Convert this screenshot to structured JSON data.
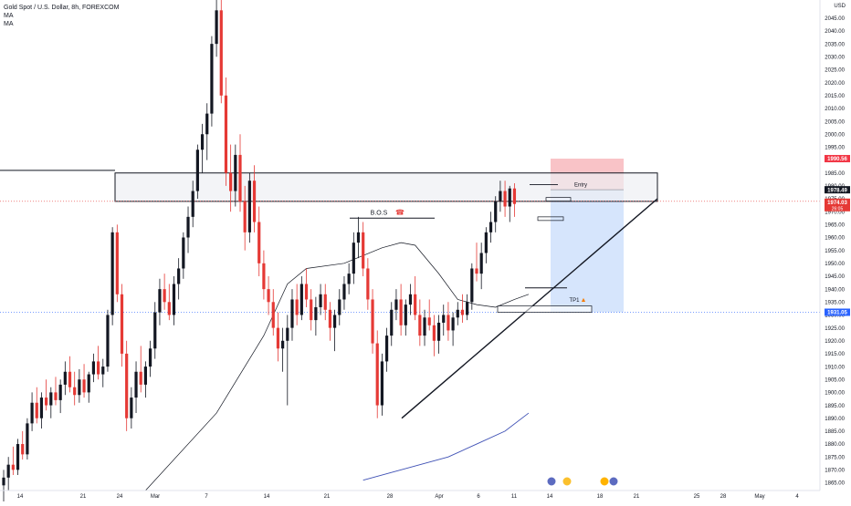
{
  "legend": {
    "symbol": "Gold Spot / U.S. Dollar, 8h, FOREXCOM",
    "ma1": "MA",
    "ma2": "MA"
  },
  "axis": {
    "currency": "USD"
  },
  "colors": {
    "up": "#131722",
    "down": "#e53935",
    "ma_short": "#131722",
    "ma_long": "#3f51b5",
    "sl_zone": "#f8b8bd",
    "tp_zone": "#cfe0fb",
    "current_price_bg": "#e53935",
    "tp_price_bg": "#2962ff",
    "entry_price_bg": "#131722",
    "sl_price_bg": "#f23645"
  },
  "chart_data": {
    "type": "candlestick",
    "title": "Gold Spot / U.S. Dollar, 8h, FOREXCOM",
    "ylim": [
      1862,
      2052
    ],
    "y_ticks": [
      1865,
      1870,
      1875,
      1880,
      1885,
      1890,
      1895,
      1900,
      1905,
      1910,
      1915,
      1920,
      1925,
      1930,
      1935,
      1940,
      1945,
      1950,
      1955,
      1960,
      1965,
      1970,
      1975,
      1980,
      1985,
      1990,
      1995,
      2000,
      2005,
      2010,
      2015,
      2020,
      2025,
      2030,
      2035,
      2040,
      2045
    ],
    "x_ticks": [
      "14",
      "21",
      "24",
      "Mar",
      "7",
      "14",
      "21",
      "28",
      "Apr",
      "6",
      "11",
      "14",
      "18",
      "21",
      "25",
      "28",
      "May",
      "4"
    ],
    "annotations": {
      "entry_label": "Entry",
      "tp_label": "TP1",
      "bos_label": "B.O.S"
    },
    "price_labels": {
      "sl": "1990.56",
      "entry": "1978.49",
      "current": "1974.03",
      "countdown": "26:05",
      "tp": "1931.05"
    },
    "levels": {
      "sl": 1990.56,
      "entry": 1978.49,
      "current": 1974.03,
      "tp": 1931.05,
      "resistance_top": 1985,
      "resistance_bottom": 1974,
      "bos": 1967.5
    },
    "candles": [
      [
        1864,
        1870,
        1856,
        1867
      ],
      [
        1867,
        1875,
        1862,
        1872
      ],
      [
        1872,
        1879,
        1868,
        1870
      ],
      [
        1870,
        1882,
        1868,
        1880
      ],
      [
        1880,
        1885,
        1874,
        1876
      ],
      [
        1876,
        1890,
        1874,
        1888
      ],
      [
        1888,
        1900,
        1885,
        1896
      ],
      [
        1896,
        1902,
        1888,
        1890
      ],
      [
        1890,
        1900,
        1886,
        1898
      ],
      [
        1898,
        1905,
        1893,
        1895
      ],
      [
        1895,
        1902,
        1890,
        1900
      ],
      [
        1900,
        1906,
        1895,
        1897
      ],
      [
        1897,
        1905,
        1892,
        1903
      ],
      [
        1903,
        1912,
        1899,
        1908
      ],
      [
        1908,
        1914,
        1900,
        1902
      ],
      [
        1902,
        1908,
        1895,
        1899
      ],
      [
        1899,
        1909,
        1896,
        1905
      ],
      [
        1905,
        1911,
        1898,
        1900
      ],
      [
        1900,
        1908,
        1896,
        1907
      ],
      [
        1907,
        1915,
        1904,
        1912
      ],
      [
        1912,
        1918,
        1905,
        1907
      ],
      [
        1907,
        1913,
        1902,
        1910
      ],
      [
        1910,
        1932,
        1908,
        1930
      ],
      [
        1930,
        1964,
        1926,
        1962
      ],
      [
        1962,
        1965,
        1935,
        1938
      ],
      [
        1938,
        1942,
        1910,
        1915
      ],
      [
        1915,
        1920,
        1885,
        1890
      ],
      [
        1890,
        1902,
        1886,
        1898
      ],
      [
        1898,
        1912,
        1892,
        1908
      ],
      [
        1908,
        1918,
        1900,
        1903
      ],
      [
        1903,
        1912,
        1898,
        1910
      ],
      [
        1910,
        1920,
        1906,
        1917
      ],
      [
        1917,
        1935,
        1913,
        1931
      ],
      [
        1931,
        1944,
        1926,
        1940
      ],
      [
        1940,
        1946,
        1932,
        1935
      ],
      [
        1935,
        1942,
        1928,
        1930
      ],
      [
        1930,
        1945,
        1926,
        1942
      ],
      [
        1942,
        1952,
        1936,
        1948
      ],
      [
        1948,
        1962,
        1944,
        1960
      ],
      [
        1960,
        1972,
        1954,
        1968
      ],
      [
        1968,
        1982,
        1964,
        1978
      ],
      [
        1978,
        1996,
        1975,
        1994
      ],
      [
        1994,
        2004,
        1985,
        2000
      ],
      [
        2000,
        2012,
        1990,
        2008
      ],
      [
        2008,
        2038,
        2003,
        2035
      ],
      [
        2035,
        2052,
        2030,
        2048
      ],
      [
        2048,
        2052,
        2012,
        2015
      ],
      [
        2015,
        2022,
        1980,
        1985
      ],
      [
        1985,
        1996,
        1970,
        1978
      ],
      [
        1978,
        1996,
        1972,
        1992
      ],
      [
        1992,
        2000,
        1970,
        1974
      ],
      [
        1974,
        1980,
        1955,
        1962
      ],
      [
        1962,
        1985,
        1958,
        1982
      ],
      [
        1982,
        1988,
        1962,
        1966
      ],
      [
        1966,
        1972,
        1945,
        1950
      ],
      [
        1950,
        1955,
        1936,
        1940
      ],
      [
        1940,
        1945,
        1930,
        1935
      ],
      [
        1935,
        1940,
        1922,
        1925
      ],
      [
        1925,
        1931,
        1912,
        1917
      ],
      [
        1917,
        1925,
        1908,
        1920
      ],
      [
        1920,
        1930,
        1895,
        1925
      ],
      [
        1925,
        1940,
        1920,
        1936
      ],
      [
        1936,
        1942,
        1926,
        1930
      ],
      [
        1930,
        1945,
        1928,
        1942
      ],
      [
        1942,
        1948,
        1933,
        1936
      ],
      [
        1936,
        1940,
        1924,
        1928
      ],
      [
        1928,
        1937,
        1922,
        1933
      ],
      [
        1933,
        1942,
        1930,
        1938
      ],
      [
        1938,
        1942,
        1928,
        1932
      ],
      [
        1932,
        1935,
        1920,
        1925
      ],
      [
        1925,
        1932,
        1916,
        1930
      ],
      [
        1930,
        1940,
        1926,
        1936
      ],
      [
        1936,
        1945,
        1932,
        1942
      ],
      [
        1942,
        1950,
        1938,
        1946
      ],
      [
        1946,
        1962,
        1942,
        1958
      ],
      [
        1958,
        1968,
        1952,
        1962
      ],
      [
        1962,
        1966,
        1945,
        1948
      ],
      [
        1948,
        1952,
        1932,
        1936
      ],
      [
        1936,
        1940,
        1915,
        1919
      ],
      [
        1919,
        1924,
        1890,
        1895
      ],
      [
        1895,
        1915,
        1891,
        1912
      ],
      [
        1912,
        1925,
        1908,
        1922
      ],
      [
        1922,
        1935,
        1918,
        1932
      ],
      [
        1932,
        1940,
        1928,
        1936
      ],
      [
        1936,
        1942,
        1922,
        1926
      ],
      [
        1926,
        1936,
        1922,
        1934
      ],
      [
        1934,
        1942,
        1930,
        1938
      ],
      [
        1938,
        1945,
        1928,
        1930
      ],
      [
        1930,
        1936,
        1918,
        1922
      ],
      [
        1922,
        1932,
        1918,
        1929
      ],
      [
        1929,
        1936,
        1924,
        1926
      ],
      [
        1926,
        1930,
        1914,
        1920
      ],
      [
        1920,
        1930,
        1915,
        1927
      ],
      [
        1927,
        1934,
        1922,
        1930
      ],
      [
        1930,
        1935,
        1920,
        1924
      ],
      [
        1924,
        1931,
        1918,
        1929
      ],
      [
        1929,
        1935,
        1926,
        1932
      ],
      [
        1932,
        1938,
        1927,
        1930
      ],
      [
        1930,
        1938,
        1928,
        1935
      ],
      [
        1935,
        1950,
        1932,
        1948
      ],
      [
        1948,
        1958,
        1943,
        1946
      ],
      [
        1946,
        1958,
        1940,
        1954
      ],
      [
        1954,
        1964,
        1950,
        1962
      ],
      [
        1962,
        1970,
        1958,
        1966
      ],
      [
        1966,
        1976,
        1962,
        1974
      ],
      [
        1974,
        1982,
        1970,
        1978
      ],
      [
        1978,
        1982,
        1968,
        1972
      ],
      [
        1972,
        1980,
        1966,
        1979
      ],
      [
        1979,
        1981,
        1968,
        1973
      ]
    ],
    "ma_short": [
      [
        30,
        1862
      ],
      [
        45,
        1892
      ],
      [
        55,
        1922
      ],
      [
        60,
        1942
      ],
      [
        64,
        1948
      ],
      [
        72,
        1950
      ],
      [
        80,
        1956
      ],
      [
        84,
        1958
      ],
      [
        87,
        1957
      ],
      [
        92,
        1946
      ],
      [
        96,
        1936
      ],
      [
        100,
        1934
      ],
      [
        104,
        1933
      ],
      [
        108,
        1936
      ],
      [
        111,
        1938
      ]
    ],
    "ma_long": [
      [
        76,
        1866
      ],
      [
        82,
        1869
      ],
      [
        88,
        1872
      ],
      [
        94,
        1875
      ],
      [
        100,
        1880
      ],
      [
        106,
        1885
      ],
      [
        111,
        1892
      ]
    ]
  }
}
